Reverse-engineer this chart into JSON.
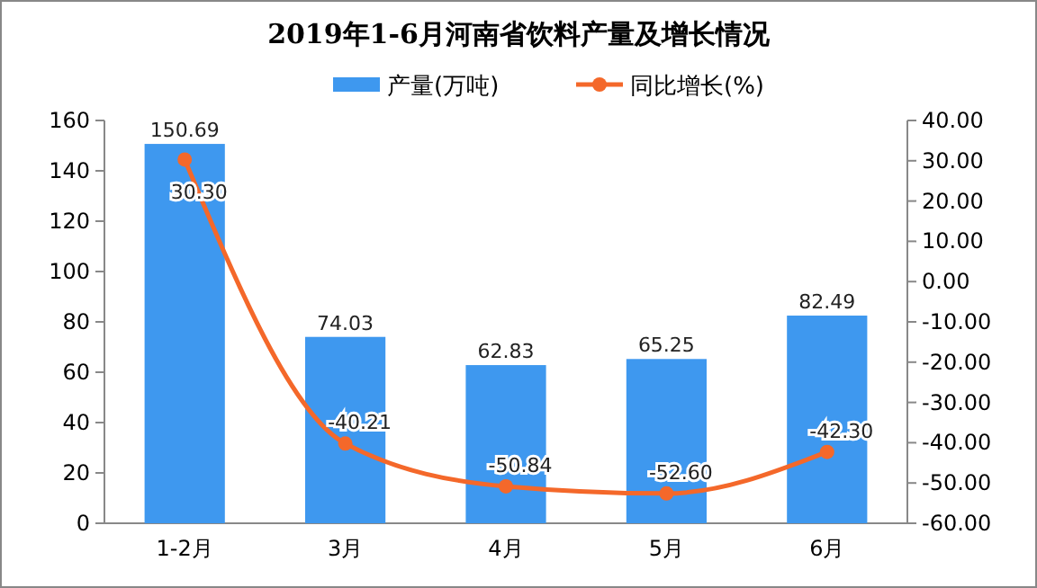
{
  "chart_data": {
    "type": "bar",
    "title": "2019年1-6月河南省饮料产量及增长情况",
    "categories": [
      "1-2月",
      "3月",
      "4月",
      "5月",
      "6月"
    ],
    "series": [
      {
        "name": "产量(万吨)",
        "color": "#3e98ef",
        "values": [
          150.69,
          74.03,
          62.83,
          65.25,
          82.49
        ],
        "value_labels": [
          "150.69",
          "74.03",
          "62.83",
          "65.25",
          "82.49"
        ]
      },
      {
        "name": "同比增长(%)",
        "type": "line",
        "axis": "y2",
        "color": "#f4682a",
        "values": [
          30.3,
          -40.21,
          -50.84,
          -52.6,
          -42.3
        ],
        "value_labels": [
          "30.30",
          "-40.21",
          "-50.84",
          "-52.60",
          "-42.30"
        ]
      }
    ],
    "ylim": [
      0,
      160
    ],
    "yticks": [
      0,
      20,
      40,
      60,
      80,
      100,
      120,
      140,
      160
    ],
    "y2lim": [
      -60,
      40
    ],
    "y2ticks": [
      {
        "value": 40,
        "label": "40.00"
      },
      {
        "value": 30,
        "label": "30.00"
      },
      {
        "value": 20,
        "label": "20.00"
      },
      {
        "value": 10,
        "label": "10.00"
      },
      {
        "value": 0,
        "label": "0.00"
      },
      {
        "value": -10,
        "label": "-10.00"
      },
      {
        "value": -20,
        "label": "-20.00"
      },
      {
        "value": -30,
        "label": "-30.00"
      },
      {
        "value": -40,
        "label": "-40.00"
      },
      {
        "value": -50,
        "label": "-50.00"
      },
      {
        "value": -60,
        "label": "-60.00"
      }
    ],
    "legend": "top",
    "marker": "circle",
    "grid": false
  }
}
